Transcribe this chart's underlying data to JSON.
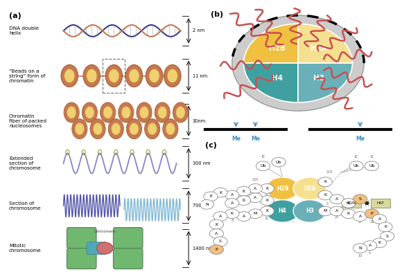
{
  "bg_color": "#ffffff",
  "labels_left": [
    "DNA double\nhelix",
    "\"Beads on a\nstring\" form of\nchromatin",
    "Chromatin\nfiber of packed\nnucleosomes",
    "Extended\nsection of\nchromosome",
    "Section of\nchromosome",
    "Mitotic\nchromosome"
  ],
  "sizes": [
    "2 nm",
    "11 nm",
    "30nm",
    "300 nm",
    "700 nm",
    "1400 nm"
  ],
  "histone_H2B": "#f0c040",
  "histone_H2A": "#f5e090",
  "histone_H4": "#40a0a0",
  "histone_H3": "#6ab0b8",
  "dna_color1": "#3a3a8c",
  "nucleosome_outer": "#c87850",
  "nucleosome_inner": "#f0d070",
  "extended_color": "#7070c0",
  "section_color1": "#4040a0",
  "section_color2": "#70b0d0",
  "chromosome_color": "#70b870",
  "centromere_color1": "#d07070",
  "centromere_color2": "#50a8b8",
  "tail_color": "#c85050",
  "me_color": "#4090c0",
  "hdac_hat_color": "#d8d8a0",
  "node_edge": "#888888"
}
